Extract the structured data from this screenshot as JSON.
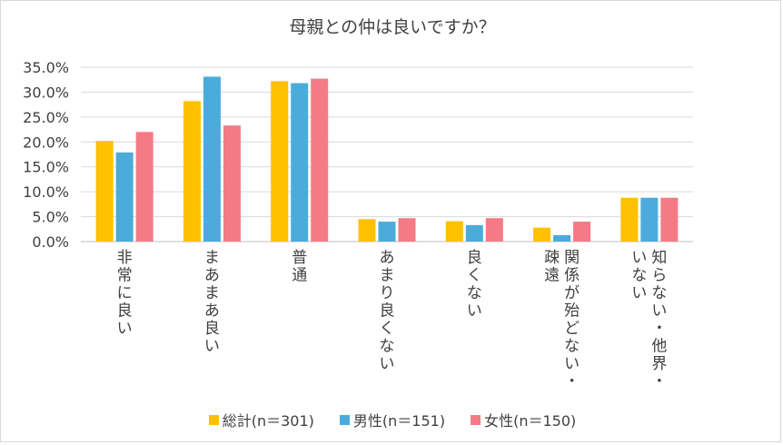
{
  "chart_data": {
    "type": "bar",
    "title": "母親との仲は良いですか？",
    "categories": [
      "非常に良い",
      "まあまあ良い",
      "普通",
      "あまり良くない",
      "良くない",
      "関係が殆どない・疎遠",
      "知らない・他界・いない"
    ],
    "category_lines": [
      [
        "非常に良い"
      ],
      [
        "まあまあ良い"
      ],
      [
        "普通"
      ],
      [
        "あまり良くない"
      ],
      [
        "良くない"
      ],
      [
        "関係が殆どない・",
        "疎遠"
      ],
      [
        "知らない・他界・",
        "いない"
      ]
    ],
    "series": [
      {
        "name": "総計(n＝301)",
        "color": "#FFC000",
        "values": [
          20.2,
          28.2,
          32.2,
          4.5,
          4.1,
          2.8,
          8.8
        ]
      },
      {
        "name": "男性(n＝151)",
        "color": "#4BACDC",
        "values": [
          17.9,
          33.1,
          31.8,
          4.0,
          3.3,
          1.3,
          8.8
        ]
      },
      {
        "name": "女性(n＝150)",
        "color": "#F47A86",
        "values": [
          22.0,
          23.3,
          32.7,
          4.7,
          4.7,
          4.0,
          8.8
        ]
      }
    ],
    "ylim": [
      0,
      35
    ],
    "yticks": [
      "0.0%",
      "5.0%",
      "10.0%",
      "15.0%",
      "20.0%",
      "25.0%",
      "30.0%",
      "35.0%"
    ],
    "ytick_values": [
      0,
      5,
      10,
      15,
      20,
      25,
      30,
      35
    ],
    "grid": true,
    "legend_position": "bottom"
  }
}
